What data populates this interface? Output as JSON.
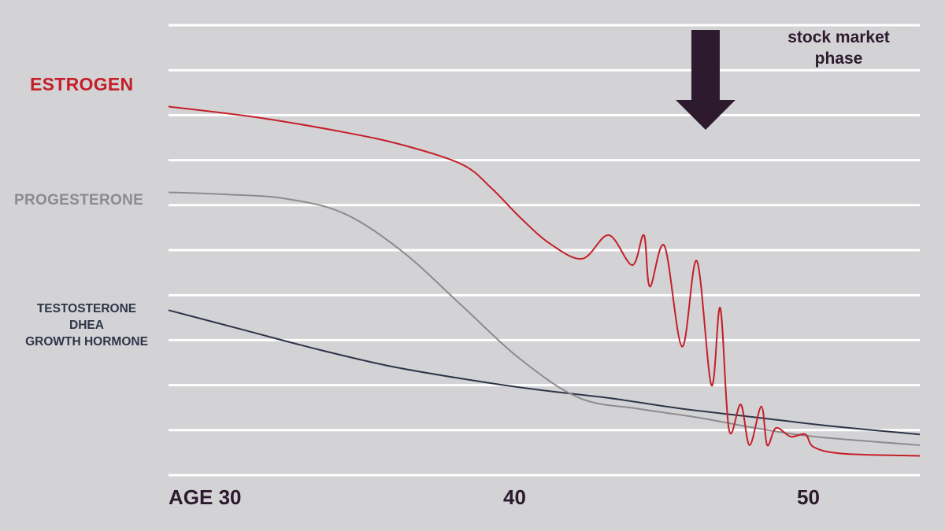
{
  "chart_data": {
    "type": "line",
    "title": "",
    "xlabel": "",
    "ylabel": "",
    "x_ticks": [
      {
        "value": 30,
        "label": "AGE 30"
      },
      {
        "value": 40,
        "label": "40"
      },
      {
        "value": 50,
        "label": "50"
      }
    ],
    "xlim": [
      30,
      55.6
    ],
    "ylim": [
      0,
      10.5
    ],
    "grid": {
      "horizontal": true,
      "vertical": false,
      "color": "#ffffff",
      "count": 11
    },
    "legend": "left-side labels",
    "series": [
      {
        "name": "ESTROGEN",
        "color": "#c41f29",
        "points": [
          [
            30,
            8.6
          ],
          [
            33,
            8.35
          ],
          [
            36,
            8.0
          ],
          [
            38,
            7.7
          ],
          [
            40,
            7.25
          ],
          [
            41,
            6.7
          ],
          [
            42,
            6.0
          ],
          [
            43,
            5.4
          ],
          [
            44.1,
            5.05
          ],
          [
            45.0,
            5.6
          ],
          [
            45.8,
            4.9
          ],
          [
            46.2,
            5.6
          ],
          [
            46.4,
            4.4
          ],
          [
            46.9,
            5.35
          ],
          [
            47.5,
            3.0
          ],
          [
            48.0,
            5.0
          ],
          [
            48.5,
            2.1
          ],
          [
            48.8,
            3.9
          ],
          [
            49.1,
            1.05
          ],
          [
            49.5,
            1.65
          ],
          [
            49.8,
            0.7
          ],
          [
            50.2,
            1.6
          ],
          [
            50.4,
            0.7
          ],
          [
            50.7,
            1.1
          ],
          [
            51.2,
            0.9
          ],
          [
            51.7,
            0.95
          ],
          [
            52.0,
            0.65
          ],
          [
            53.0,
            0.5
          ],
          [
            55.6,
            0.45
          ]
        ]
      },
      {
        "name": "PROGESTERONE",
        "color": "#8c8c8e",
        "points": [
          [
            30,
            6.6
          ],
          [
            32,
            6.55
          ],
          [
            34,
            6.45
          ],
          [
            36,
            6.1
          ],
          [
            38,
            5.2
          ],
          [
            40,
            3.95
          ],
          [
            42,
            2.7
          ],
          [
            44,
            1.8
          ],
          [
            46,
            1.55
          ],
          [
            48,
            1.35
          ],
          [
            50,
            1.1
          ],
          [
            52,
            0.9
          ],
          [
            55.6,
            0.7
          ]
        ]
      },
      {
        "name": "TESTOSTERONE\nDHEA\nGROWTH HORMONE",
        "color": "#2e3448",
        "points": [
          [
            30,
            3.85
          ],
          [
            32.5,
            3.4
          ],
          [
            35,
            2.95
          ],
          [
            37.5,
            2.55
          ],
          [
            40,
            2.25
          ],
          [
            42.5,
            2.0
          ],
          [
            45,
            1.8
          ],
          [
            47.5,
            1.55
          ],
          [
            50,
            1.35
          ],
          [
            52.5,
            1.15
          ],
          [
            55.6,
            0.95
          ]
        ]
      }
    ],
    "annotations": [
      {
        "text": "stock market phase",
        "type": "down-arrow",
        "x": 48.3,
        "color": "#2d1a2e"
      }
    ]
  },
  "labels": {
    "estrogen": "ESTROGEN",
    "progesterone": "PROGESTERONE",
    "testo_line1": "TESTOSTERONE",
    "testo_line2": "DHEA",
    "testo_line3": "GROWTH HORMONE",
    "annotation_line1": "stock market",
    "annotation_line2": "phase"
  }
}
